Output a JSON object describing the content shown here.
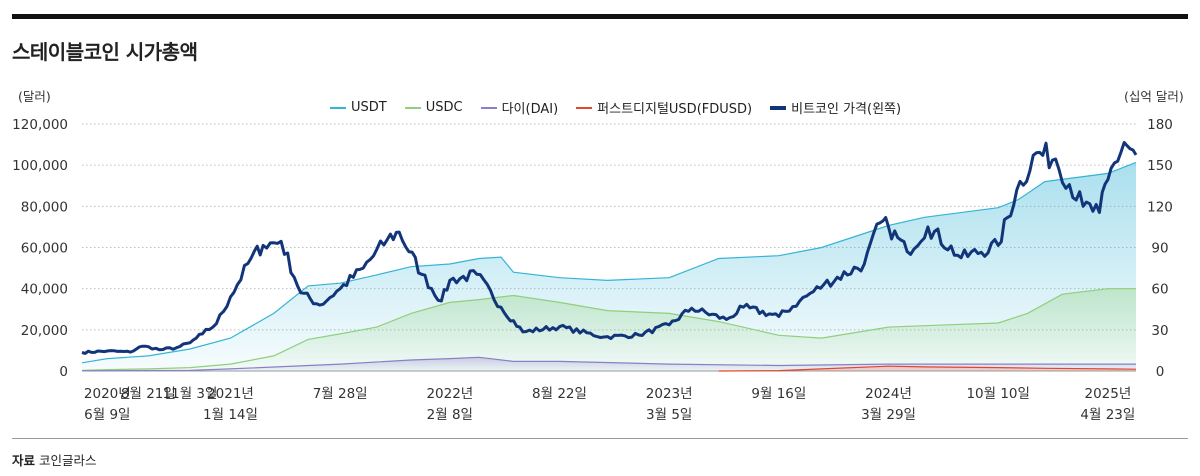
{
  "title": "스테이블코인 시가총액",
  "source": {
    "label": "자료",
    "text": "코인글라스"
  },
  "chart_data": {
    "type": "line",
    "title": "스테이블코인 시가총액",
    "left_axis": {
      "unit": "(달러)",
      "ticks": [
        "0",
        "20,000",
        "40,000",
        "60,000",
        "80,000",
        "100,000",
        "120,000"
      ],
      "range": [
        0,
        120000
      ]
    },
    "right_axis": {
      "unit": "(십억 달러)",
      "ticks": [
        "0",
        "30",
        "60",
        "90",
        "120",
        "150",
        "180"
      ],
      "range": [
        0,
        180
      ]
    },
    "x_labels": [
      [
        "2020년",
        "6월 9일"
      ],
      [
        "8월 21일"
      ],
      [
        "11월 3일"
      ],
      [
        "2021년",
        "1월 14일"
      ],
      [
        "7월 28일"
      ],
      [
        "2022년",
        "2월 8일"
      ],
      [
        "8월 22일"
      ],
      [
        "2023년",
        "3월 5일"
      ],
      [
        "9월 16일"
      ],
      [
        "2024년",
        "3월 29일"
      ],
      [
        "10월 10일"
      ],
      [
        "2025년",
        "4월 23일"
      ]
    ],
    "x_dates": [
      "2020-06-09",
      "2020-08-21",
      "2020-11-03",
      "2021-01-14",
      "2021-07-28",
      "2022-02-08",
      "2022-08-22",
      "2023-03-05",
      "2023-09-16",
      "2024-03-29",
      "2024-10-10",
      "2025-04-23"
    ],
    "x_range": [
      "2020-04-25",
      "2025-06-12"
    ],
    "grid": "horizontal dotted",
    "legend_position": "top-center",
    "colors": {
      "usdt": "#35b4d6",
      "usdc": "#8fd07a",
      "dai": "#8a7fc8",
      "fdusd": "#e2462e",
      "btc": "#12357a"
    },
    "series": [
      {
        "name": "USDT",
        "axis": "right",
        "style": "area",
        "x": [
          "2020-04-25",
          "2020-06-09",
          "2020-08-21",
          "2020-11-03",
          "2021-01-14",
          "2021-04-01",
          "2021-06-01",
          "2021-07-28",
          "2021-10-01",
          "2021-12-01",
          "2022-02-08",
          "2022-04-01",
          "2022-05-10",
          "2022-06-01",
          "2022-08-22",
          "2022-11-15",
          "2023-03-05",
          "2023-06-01",
          "2023-09-16",
          "2023-12-01",
          "2024-03-29",
          "2024-06-01",
          "2024-10-10",
          "2024-11-15",
          "2025-01-01",
          "2025-04-23",
          "2025-06-12"
        ],
        "values": [
          6,
          9,
          11,
          16,
          24,
          42,
          62,
          64,
          70,
          76,
          78,
          82,
          83,
          72,
          68,
          66,
          68,
          82,
          84,
          90,
          106,
          112,
          119,
          125,
          138,
          144,
          152
        ]
      },
      {
        "name": "USDC",
        "axis": "right",
        "style": "area",
        "x": [
          "2020-04-25",
          "2020-06-09",
          "2020-08-21",
          "2020-11-03",
          "2021-01-14",
          "2021-04-01",
          "2021-06-01",
          "2021-07-28",
          "2021-10-01",
          "2021-12-01",
          "2022-02-08",
          "2022-04-01",
          "2022-06-01",
          "2022-08-22",
          "2022-11-15",
          "2023-03-05",
          "2023-06-01",
          "2023-09-16",
          "2023-12-01",
          "2024-03-29",
          "2024-06-01",
          "2024-10-10",
          "2024-12-01",
          "2025-02-01",
          "2025-04-23",
          "2025-06-12"
        ],
        "values": [
          0.5,
          1,
          1.5,
          2.5,
          5,
          11,
          23,
          27,
          32,
          42,
          50,
          52,
          55,
          50,
          44,
          42,
          36,
          26,
          24,
          32,
          33,
          35,
          42,
          56,
          60,
          60
        ]
      },
      {
        "name": "다이(DAI)",
        "axis": "right",
        "style": "area",
        "x": [
          "2020-04-25",
          "2020-11-03",
          "2021-01-14",
          "2021-07-28",
          "2021-12-01",
          "2022-02-08",
          "2022-04-01",
          "2022-06-01",
          "2022-08-22",
          "2023-03-05",
          "2023-09-16",
          "2024-03-29",
          "2024-10-10",
          "2025-04-23",
          "2025-06-12"
        ],
        "values": [
          0.1,
          0.5,
          1.5,
          5,
          8,
          9,
          10,
          7,
          7,
          5,
          4,
          5,
          5,
          5,
          5
        ]
      },
      {
        "name": "퍼스트디지털USD(FDUSD)",
        "axis": "right",
        "style": "area",
        "x": [
          "2023-06-01",
          "2023-09-16",
          "2023-12-01",
          "2024-03-29",
          "2024-06-01",
          "2024-10-10",
          "2025-01-01",
          "2025-04-23",
          "2025-06-12"
        ],
        "values": [
          0,
          0.3,
          1.5,
          3.5,
          3,
          2.5,
          2,
          1.5,
          1.3
        ]
      },
      {
        "name": "비트코인 가격(왼쪽)",
        "axis": "left",
        "style": "line",
        "x": [
          "2020-04-25",
          "2020-06-09",
          "2020-07-20",
          "2020-08-05",
          "2020-08-21",
          "2020-09-10",
          "2020-10-10",
          "2020-11-03",
          "2020-11-25",
          "2020-12-20",
          "2021-01-14",
          "2021-02-20",
          "2021-03-13",
          "2021-04-14",
          "2021-05-19",
          "2021-06-22",
          "2021-07-28",
          "2021-09-07",
          "2021-10-20",
          "2021-11-10",
          "2021-12-20",
          "2022-01-24",
          "2022-02-08",
          "2022-03-28",
          "2022-05-10",
          "2022-06-18",
          "2022-08-22",
          "2022-11-09",
          "2023-01-10",
          "2023-03-05",
          "2023-04-14",
          "2023-06-15",
          "2023-07-15",
          "2023-09-16",
          "2023-10-23",
          "2023-12-05",
          "2024-02-15",
          "2024-03-14",
          "2024-03-29",
          "2024-05-01",
          "2024-06-07",
          "2024-08-05",
          "2024-10-10",
          "2024-11-12",
          "2024-12-17",
          "2025-01-20",
          "2025-03-10",
          "2025-04-08",
          "2025-04-23",
          "2025-05-22",
          "2025-06-12"
        ],
        "values": [
          9000,
          9700,
          9200,
          11700,
          11800,
          10300,
          11300,
          13700,
          18000,
          23000,
          36000,
          55000,
          61000,
          63000,
          38000,
          32000,
          40000,
          50000,
          64000,
          67500,
          47000,
          34000,
          44000,
          47000,
          31000,
          19000,
          21500,
          16500,
          17500,
          22400,
          30500,
          25000,
          31000,
          26500,
          34000,
          42000,
          52000,
          72000,
          70000,
          58000,
          70000,
          55000,
          61000,
          88000,
          106000,
          103000,
          80000,
          77000,
          93000,
          111000,
          105000
        ]
      }
    ]
  }
}
